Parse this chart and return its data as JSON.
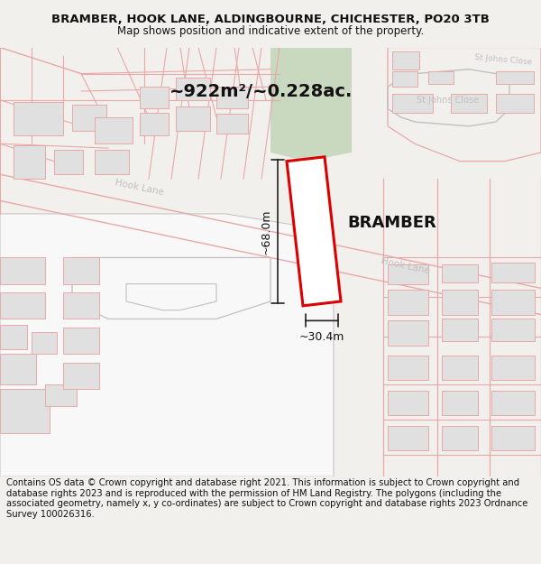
{
  "title_line1": "BRAMBER, HOOK LANE, ALDINGBOURNE, CHICHESTER, PO20 3TB",
  "title_line2": "Map shows position and indicative extent of the property.",
  "area_label": "~922m²/~0.228ac.",
  "width_label": "~30.4m",
  "height_label": "~68.0m",
  "property_name": "BRAMBER",
  "footer_text": "Contains OS data © Crown copyright and database right 2021. This information is subject to Crown copyright and database rights 2023 and is reproduced with the permission of HM Land Registry. The polygons (including the associated geometry, namely x, y co-ordinates) are subject to Crown copyright and database rights 2023 Ordnance Survey 100026316.",
  "map_bg": "#ffffff",
  "road_line_color": "#e8a8a8",
  "road_gray_color": "#c0c0c0",
  "building_fc": "#e0e0e0",
  "building_ec": "#e8a8a8",
  "plot_ec": "#dd0000",
  "highlight_fc": "#c8d9c0",
  "annotation_color": "#222222",
  "title_fontsize": 9.5,
  "subtitle_fontsize": 8.5,
  "footer_fontsize": 7.2
}
